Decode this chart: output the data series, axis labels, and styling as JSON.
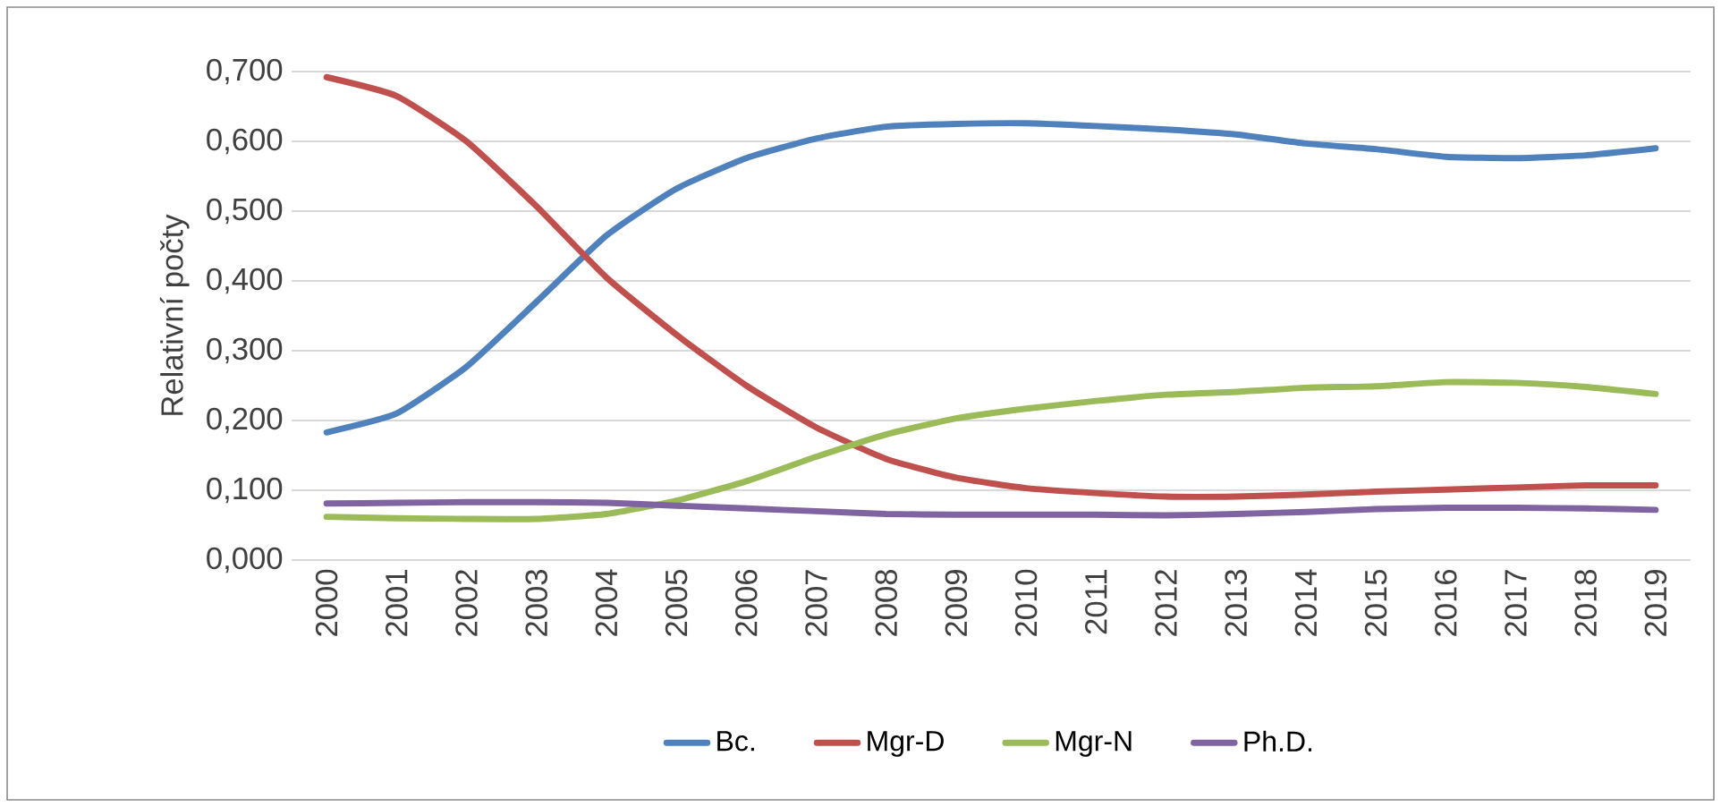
{
  "chart_data": {
    "type": "line",
    "ylabel": "Relativní počty",
    "categories": [
      "2000",
      "2001",
      "2002",
      "2003",
      "2004",
      "2005",
      "2006",
      "2007",
      "2008",
      "2009",
      "2010",
      "2011",
      "2012",
      "2013",
      "2014",
      "2015",
      "2016",
      "2017",
      "2018",
      "2019"
    ],
    "series": [
      {
        "name": "Bc.",
        "color": "#4f81bd",
        "values": [
          0.183,
          0.21,
          0.277,
          0.37,
          0.465,
          0.532,
          0.576,
          0.604,
          0.621,
          0.625,
          0.626,
          0.622,
          0.617,
          0.61,
          0.597,
          0.589,
          0.578,
          0.576,
          0.58,
          0.59
        ]
      },
      {
        "name": "Mgr-D",
        "color": "#c0504d",
        "values": [
          0.692,
          0.665,
          0.6,
          0.507,
          0.405,
          0.323,
          0.25,
          0.19,
          0.145,
          0.118,
          0.103,
          0.096,
          0.091,
          0.091,
          0.094,
          0.098,
          0.101,
          0.104,
          0.107,
          0.107
        ]
      },
      {
        "name": "Mgr-N",
        "color": "#9bbb59",
        "values": [
          0.062,
          0.06,
          0.059,
          0.059,
          0.066,
          0.085,
          0.113,
          0.148,
          0.18,
          0.203,
          0.217,
          0.228,
          0.237,
          0.241,
          0.247,
          0.249,
          0.255,
          0.254,
          0.248,
          0.238
        ]
      },
      {
        "name": "Ph.D.",
        "color": "#8064a2",
        "values": [
          0.081,
          0.082,
          0.083,
          0.083,
          0.082,
          0.078,
          0.074,
          0.07,
          0.066,
          0.065,
          0.065,
          0.065,
          0.064,
          0.066,
          0.069,
          0.073,
          0.075,
          0.075,
          0.074,
          0.072
        ]
      }
    ],
    "ylim": [
      0,
      0.7
    ],
    "yticks": [
      {
        "value": 0,
        "label": "0,000"
      },
      {
        "value": 0.1,
        "label": "0,100"
      },
      {
        "value": 0.2,
        "label": "0,200"
      },
      {
        "value": 0.3,
        "label": "0,300"
      },
      {
        "value": 0.4,
        "label": "0,400"
      },
      {
        "value": 0.5,
        "label": "0,500"
      },
      {
        "value": 0.6,
        "label": "0,600"
      },
      {
        "value": 0.7,
        "label": "0,700"
      }
    ],
    "grid": "y",
    "legend": "bottom"
  }
}
